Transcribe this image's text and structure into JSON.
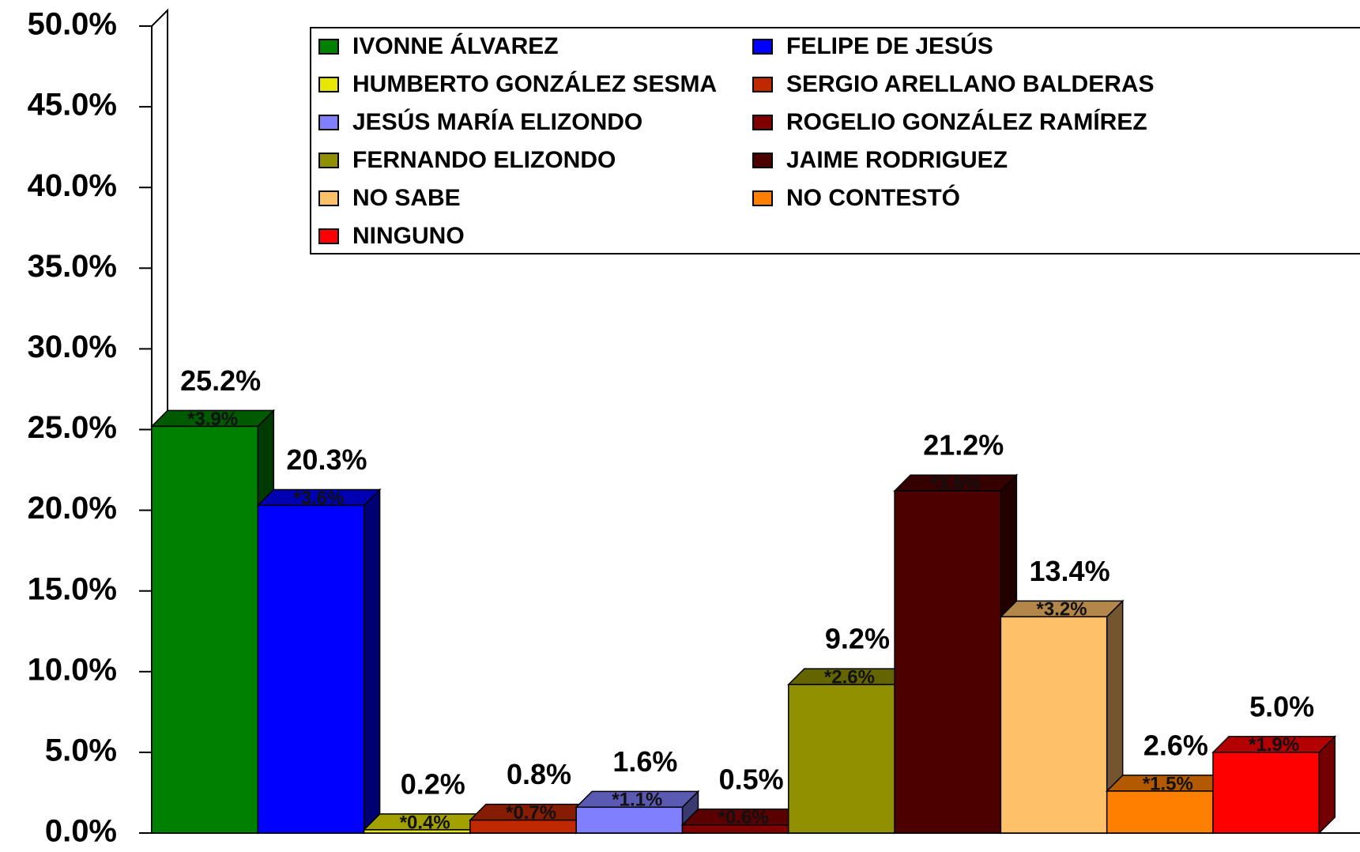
{
  "chart_data": {
    "type": "bar3d",
    "categories": [
      "IVONNE ÁLVAREZ",
      "FELIPE DE JESÚS",
      "HUMBERTO GONZÁLEZ SESMA",
      "SERGIO ARELLANO BALDERAS",
      "JESÚS MARÍA ELIZONDO",
      "ROGELIO GONZÁLEZ RAMÍREZ",
      "FERNANDO ELIZONDO",
      "JAIME RODRIGUEZ",
      "NO SABE",
      "NO CONTESTÓ",
      "NINGUNO"
    ],
    "values": [
      25.2,
      20.3,
      0.2,
      0.8,
      1.6,
      0.5,
      9.2,
      21.2,
      13.4,
      2.6,
      5.0
    ],
    "value_labels": [
      "25.2%",
      "20.3%",
      "0.2%",
      "0.8%",
      "1.6%",
      "0.5%",
      "9.2%",
      "21.2%",
      "13.4%",
      "2.6%",
      "5.0%"
    ],
    "margin_labels": [
      "*3.9%",
      "*3.6%",
      "*0.4%",
      "*0.7%",
      "*1.1%",
      "*0.6%",
      "*2.6%",
      "*3.6%",
      "*3.2%",
      "*1.5%",
      "*1.9%"
    ],
    "colors": [
      "#008000",
      "#0000ff",
      "#e6e600",
      "#c02800",
      "#8080ff",
      "#800000",
      "#909000",
      "#4d0000",
      "#ffc06a",
      "#ff8000",
      "#ff0000"
    ],
    "ylim": [
      0,
      50
    ],
    "yticks": [
      {
        "value": 0,
        "label": "0.0%"
      },
      {
        "value": 5,
        "label": "5.0%"
      },
      {
        "value": 10,
        "label": "10.0%"
      },
      {
        "value": 15,
        "label": "15.0%"
      },
      {
        "value": 20,
        "label": "20.0%"
      },
      {
        "value": 25,
        "label": "25.0%"
      },
      {
        "value": 30,
        "label": "30.0%"
      },
      {
        "value": 35,
        "label": "35.0%"
      },
      {
        "value": 40,
        "label": "40.0%"
      },
      {
        "value": 45,
        "label": "45.0%"
      },
      {
        "value": 50,
        "label": "50.0%"
      }
    ],
    "legend": "top-right"
  }
}
